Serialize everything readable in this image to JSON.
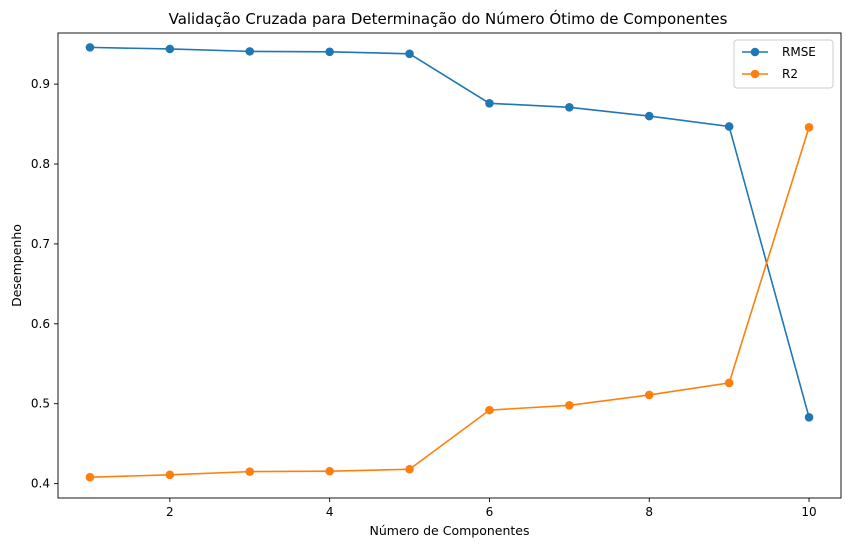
{
  "chart_data": {
    "type": "line",
    "title": "Validação Cruzada para Determinação do Número Ótimo de Componentes",
    "xlabel": "Número de Componentes",
    "ylabel": "Desempenho",
    "x": [
      1,
      2,
      3,
      4,
      5,
      6,
      7,
      8,
      9,
      10
    ],
    "xlim": [
      0.6,
      10.4
    ],
    "ylim": [
      0.382,
      0.964
    ],
    "xticks": [
      2,
      4,
      6,
      8,
      10
    ],
    "yticks": [
      0.4,
      0.5,
      0.6,
      0.7,
      0.8,
      0.9
    ],
    "xtick_labels": [
      "2",
      "4",
      "6",
      "8",
      "10"
    ],
    "ytick_labels": [
      "0.4",
      "0.5",
      "0.6",
      "0.7",
      "0.8",
      "0.9"
    ],
    "grid": false,
    "legend_position": "top-right",
    "series": [
      {
        "name": "RMSE",
        "color": "#1f77b4",
        "values": [
          0.946,
          0.944,
          0.941,
          0.9405,
          0.938,
          0.876,
          0.871,
          0.86,
          0.847,
          0.483
        ]
      },
      {
        "name": "R2",
        "color": "#ff7f0e",
        "values": [
          0.408,
          0.411,
          0.415,
          0.4155,
          0.418,
          0.492,
          0.498,
          0.511,
          0.526,
          0.846
        ]
      }
    ]
  }
}
